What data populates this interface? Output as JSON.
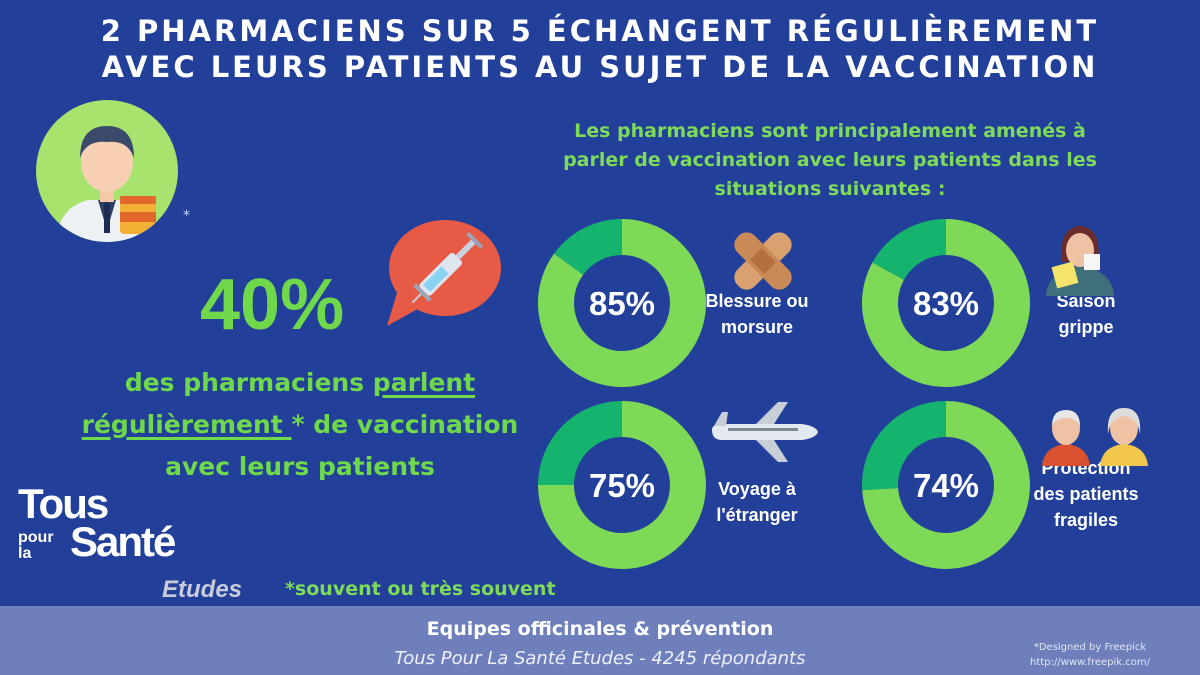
{
  "title_line1": "2 PHARMACIENS SUR 5 ÉCHANGENT RÉGULIÈREMENT",
  "title_line2": "AVEC LEURS PATIENTS AU SUJET DE LA VACCINATION",
  "intro": [
    "Les pharmaciens sont principalement amenés à",
    "parler de vaccination avec leurs patients dans les",
    "situations suivantes :"
  ],
  "pharmacist_asterisk": "*",
  "headline_value": "40%",
  "headline_text": {
    "pre": "des pharmaciens ",
    "u1": "parlent",
    "u2": "régulièrement ",
    "post1": "* de vaccination",
    "post2": "avec leurs patients"
  },
  "footnote": "*souvent ou très souvent",
  "logo": {
    "tous": "Tous",
    "pour": "pour",
    "la": "la",
    "sante": "Santé",
    "etudes": "Etudes"
  },
  "footer": {
    "line1": "Equipes officinales & prévention",
    "line2": "Tous Pour La Santé Etudes - 4245 répondants",
    "credit1": "*Designed by Freepick",
    "credit2": "http://www.freepik.com/"
  },
  "colors": {
    "background": "#22409a",
    "ring_main": "#7ed957",
    "ring_rest": "#16b36e",
    "accent_green": "#6fd94b",
    "bubble": "#e65a46",
    "footer": "#6e7fbc"
  },
  "icons": [
    "pharmacist-icon",
    "syringe-icon",
    "bandage-icon",
    "sick-woman-icon",
    "airplane-icon",
    "elderly-couple-icon"
  ],
  "chart_data": {
    "type": "pie",
    "variant": "donut",
    "unit": "%",
    "series": [
      {
        "label": [
          "Blessure ou",
          "morsure"
        ],
        "value": 85,
        "display": "85%",
        "icon": "bandage-icon"
      },
      {
        "label": [
          "Saison",
          "grippe"
        ],
        "value": 83,
        "display": "83%",
        "icon": "sick-woman-icon"
      },
      {
        "label": [
          "Voyage à",
          "l'étranger"
        ],
        "value": 75,
        "display": "75%",
        "icon": "airplane-icon"
      },
      {
        "label": [
          "Protection",
          "des patients",
          "fragiles"
        ],
        "value": 74,
        "display": "74%",
        "icon": "elderly-couple-icon"
      }
    ]
  }
}
